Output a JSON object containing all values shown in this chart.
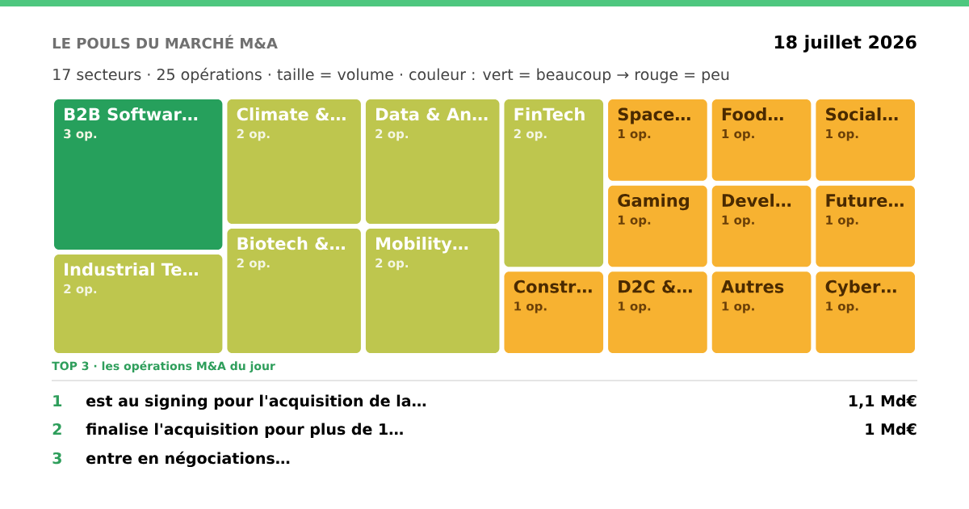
{
  "chart_data": {
    "type": "other",
    "title": "LE POULS DU MARCHÉ M&A",
    "subtitle": "17 secteurs · 25 opérations · taille = volume · couleur : vert = beaucoup → rouge = peu",
    "categories": [
      "B2B Softwar…",
      "Industrial Te…",
      "Climate &…",
      "Biotech &…",
      "Data & An…",
      "Mobility…",
      "FinTech",
      "Constr…",
      "Space…",
      "Gaming",
      "D2C &…",
      "Food…",
      "Social…",
      "Devel…",
      "Autres",
      "Future…",
      "Cyber…"
    ],
    "values": [
      3,
      2,
      2,
      2,
      2,
      2,
      2,
      1,
      1,
      1,
      1,
      1,
      1,
      1,
      1,
      1,
      1
    ],
    "value_labels": [
      "3 op.",
      "2 op.",
      "2 op.",
      "2 op.",
      "2 op.",
      "2 op.",
      "2 op.",
      "1 op.",
      "1 op.",
      "1 op.",
      "1 op.",
      "1 op.",
      "1 op.",
      "1 op.",
      "1 op.",
      "1 op.",
      "1 op."
    ],
    "colors": [
      "#26a05c",
      "#bec64e",
      "#bec64e",
      "#bec64e",
      "#bec64e",
      "#bec64e",
      "#bec64e",
      "#f7b231",
      "#f7b231",
      "#f7b231",
      "#f7b231",
      "#f7b231",
      "#f7b231",
      "#f7b231",
      "#f7b231",
      "#f7b231",
      "#f7b231"
    ],
    "annotations": [
      "18 juillet 2026",
      "TOP 3 · les opérations M&A du jour",
      "1",
      "est au signing pour l'acquisition de la…",
      "1,1 Md€",
      "2",
      "finalise l'acquisition pour plus de 1…",
      "1 Md€",
      "3",
      "entre en négociations…"
    ]
  }
}
